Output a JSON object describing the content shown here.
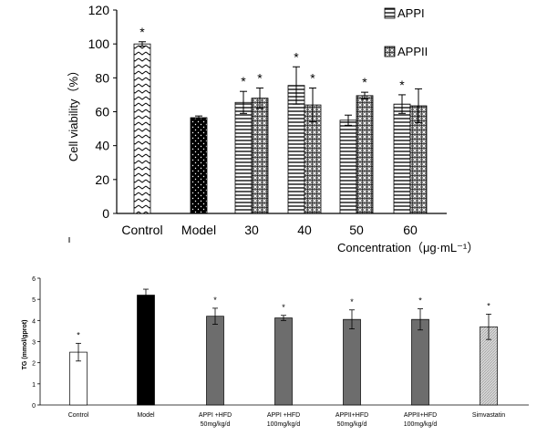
{
  "chart_data": [
    {
      "type": "bar",
      "title": "",
      "xlabel": "Concentration（μg·mL⁻¹）",
      "ylabel": "Cell viability（%）",
      "ylim": [
        0,
        120
      ],
      "yticks": [
        0,
        20,
        40,
        60,
        80,
        100,
        120
      ],
      "categories": [
        "Control",
        "Model",
        "30",
        "40",
        "50",
        "60"
      ],
      "grid": false,
      "legend": "top-right",
      "series": [
        {
          "name": "APPI",
          "pattern": "horizontal-lines",
          "values": [
            null,
            null,
            65.5,
            75.5,
            55,
            64.5
          ],
          "errors": [
            null,
            null,
            6.5,
            11,
            3,
            5.5
          ],
          "markers": [
            null,
            null,
            "*",
            "*",
            "",
            "*"
          ]
        },
        {
          "name": "APPII",
          "pattern": "crosshatch",
          "values": [
            null,
            null,
            68,
            64,
            69.5,
            63.5
          ],
          "errors": [
            null,
            null,
            6,
            10,
            2,
            10
          ],
          "markers": [
            null,
            null,
            "*",
            "*",
            "*",
            ""
          ]
        }
      ],
      "single_bars": [
        {
          "category": "Control",
          "value": 100,
          "error": 1.3,
          "pattern": "zigzag",
          "marker": "*"
        },
        {
          "category": "Model",
          "value": 56.5,
          "error": 1,
          "pattern": "black-dots",
          "marker": ""
        }
      ]
    },
    {
      "type": "bar",
      "title": "",
      "xlabel": "",
      "ylabel": "TG (mmol/gprot)",
      "ylim": [
        0,
        6
      ],
      "yticks": [
        0,
        1,
        2,
        3,
        4,
        5,
        6
      ],
      "grid": false,
      "categories": [
        {
          "line1": "Control",
          "line2": ""
        },
        {
          "line1": "Model",
          "line2": ""
        },
        {
          "line1": "APPI +HFD",
          "line2": "50mg/kg/d"
        },
        {
          "line1": "APPI +HFD",
          "line2": "100mg/kg/d"
        },
        {
          "line1": "APPII+HFD",
          "line2": "50mg/kg/d"
        },
        {
          "line1": "APPII+HFD",
          "line2": "100mg/kg/d"
        },
        {
          "line1": "Simvastatin",
          "line2": ""
        }
      ],
      "values": [
        2.5,
        5.2,
        4.2,
        4.12,
        4.05,
        4.05,
        3.7
      ],
      "errors": [
        0.42,
        0.28,
        0.38,
        0.12,
        0.45,
        0.5,
        0.6
      ],
      "markers": [
        "*",
        "",
        "*",
        "*",
        "*",
        "*",
        "*"
      ],
      "fills": [
        "white",
        "black",
        "gray",
        "gray",
        "gray",
        "gray",
        "light-hatch"
      ]
    }
  ]
}
